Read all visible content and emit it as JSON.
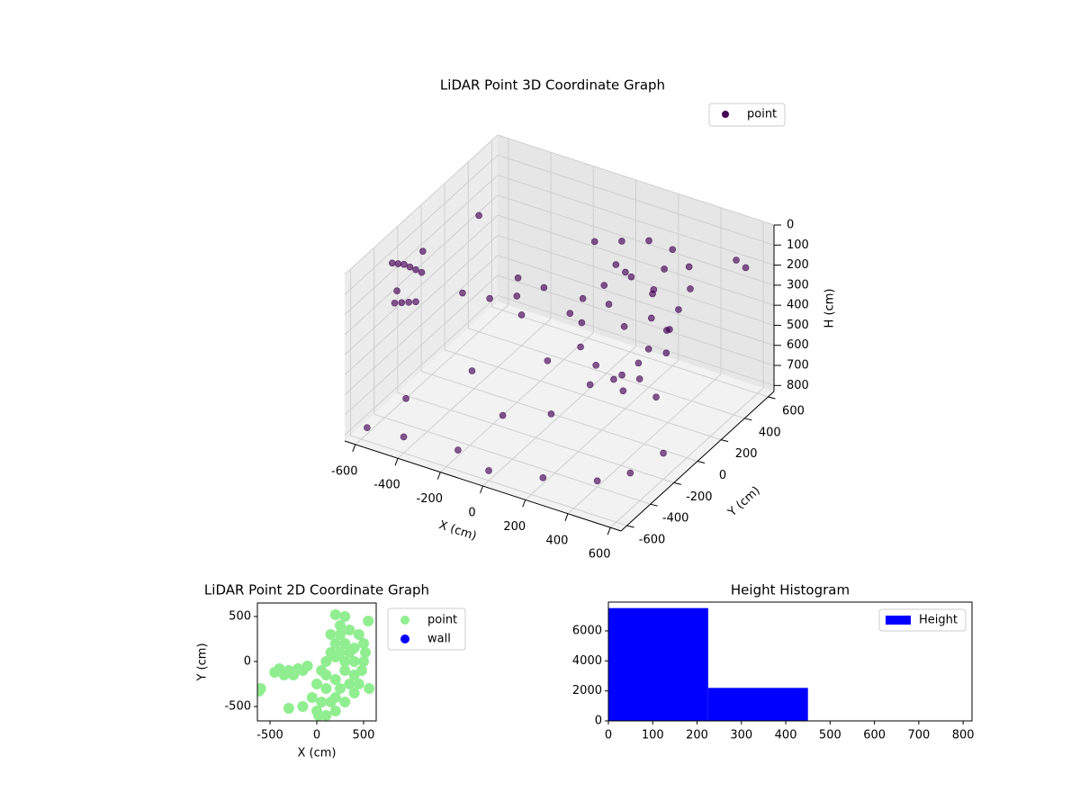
{
  "chart_data": [
    {
      "type": "scatter3d",
      "title": "LiDAR Point 3D Coordinate Graph",
      "xlabel": "X (cm)",
      "ylabel": "Y (cm)",
      "zlabel": "H (cm)",
      "xlim": [
        -650,
        650
      ],
      "ylim": [
        -650,
        650
      ],
      "zlim": [
        830,
        0
      ],
      "xticks": [
        -600,
        -400,
        -200,
        0,
        200,
        400,
        600
      ],
      "yticks": [
        -600,
        -400,
        -200,
        0,
        200,
        400,
        600
      ],
      "zticks": [
        0,
        100,
        200,
        300,
        400,
        500,
        600,
        700,
        800
      ],
      "legend": "upper right",
      "grid": true,
      "series": [
        {
          "name": "point",
          "color": "#440154",
          "x": [
            -620,
            -620,
            -620,
            -620,
            -620,
            -620,
            -620,
            -620,
            -620,
            -620,
            -620,
            -620,
            0,
            100,
            200,
            300,
            400,
            450,
            450,
            450,
            420,
            400,
            350,
            300,
            200,
            100,
            50,
            0,
            100,
            200,
            300,
            350,
            250,
            150,
            200,
            300,
            380,
            420,
            100,
            250,
            350,
            50,
            -100,
            -200,
            -300,
            -400,
            -250,
            -150,
            300,
            400,
            200,
            0,
            -500,
            -400,
            -200,
            0,
            200,
            400,
            500,
            600,
            -600,
            -100,
            100,
            -300,
            500,
            600,
            -600
          ],
          "y": [
            -300,
            -250,
            -200,
            -150,
            -100,
            -50,
            -280,
            -220,
            -160,
            -100,
            -40,
            -260,
            300,
            350,
            400,
            420,
            380,
            300,
            200,
            100,
            0,
            -50,
            -100,
            -80,
            -50,
            0,
            100,
            200,
            200,
            250,
            250,
            150,
            100,
            150,
            200,
            350,
            250,
            150,
            300,
            350,
            50,
            0,
            50,
            0,
            -50,
            -100,
            100,
            -50,
            0,
            100,
            -100,
            -100,
            -400,
            -600,
            -500,
            -600,
            -500,
            -400,
            -300,
            -200,
            -550,
            -300,
            -250,
            -200,
            600,
            500,
            400
          ],
          "z": [
            120,
            150,
            180,
            220,
            260,
            300,
            330,
            360,
            390,
            420,
            200,
            280,
            120,
            110,
            100,
            120,
            150,
            200,
            250,
            300,
            350,
            400,
            450,
            500,
            480,
            450,
            400,
            350,
            250,
            200,
            250,
            300,
            350,
            300,
            150,
            180,
            400,
            450,
            200,
            300,
            550,
            300,
            250,
            300,
            320,
            300,
            280,
            350,
            600,
            650,
            550,
            500,
            700,
            750,
            800,
            780,
            800,
            800,
            780,
            700,
            800,
            700,
            650,
            600,
            200,
            150,
            250
          ]
        }
      ]
    },
    {
      "type": "scatter",
      "title": "LiDAR Point 2D Coordinate Graph",
      "xlabel": "X (cm)",
      "ylabel": "Y (cm)",
      "xlim": [
        -635,
        635
      ],
      "ylim": [
        -660,
        650
      ],
      "xticks": [
        -500,
        0,
        500
      ],
      "yticks": [
        -500,
        0,
        500
      ],
      "legend": "outside upper right",
      "series": [
        {
          "name": "point",
          "color": "#90ee90",
          "x": [
            300,
            200,
            250,
            350,
            450,
            500,
            520,
            500,
            480,
            450,
            400,
            300,
            200,
            100,
            0,
            -50,
            0,
            50,
            100,
            150,
            200,
            250,
            300,
            350,
            400,
            300,
            200,
            100,
            250,
            350,
            150,
            50,
            300,
            200,
            400,
            150,
            250,
            400,
            100,
            200,
            -100,
            -200,
            -300,
            -400,
            -450,
            -350,
            -250,
            -150,
            -600,
            -620,
            -150,
            -300,
            550,
            560,
            20
          ],
          "y": [
            500,
            520,
            400,
            350,
            300,
            200,
            100,
            0,
            -100,
            -250,
            -350,
            -450,
            -550,
            -600,
            -550,
            -400,
            -250,
            -100,
            0,
            100,
            200,
            300,
            200,
            100,
            0,
            -100,
            -200,
            -300,
            -300,
            -250,
            -450,
            -450,
            0,
            50,
            150,
            300,
            100,
            -150,
            -150,
            -400,
            -50,
            -80,
            -100,
            -80,
            -120,
            -150,
            -150,
            -100,
            -300,
            -330,
            -500,
            -520,
            450,
            -300,
            -600
          ]
        },
        {
          "name": "wall",
          "color": "#0000ff",
          "x": [],
          "y": []
        }
      ]
    },
    {
      "type": "histogram",
      "title": "Height Histogram",
      "bins": [
        0,
        225,
        450,
        675
      ],
      "xlim": [
        0,
        820
      ],
      "ylim": [
        0,
        7920
      ],
      "xticks": [
        0,
        100,
        200,
        300,
        400,
        500,
        600,
        700,
        800
      ],
      "yticks": [
        0,
        2000,
        4000,
        6000
      ],
      "legend": "upper right",
      "series": [
        {
          "name": "Height",
          "color": "#0000ff",
          "values": [
            7520,
            2200,
            0
          ]
        }
      ]
    }
  ]
}
